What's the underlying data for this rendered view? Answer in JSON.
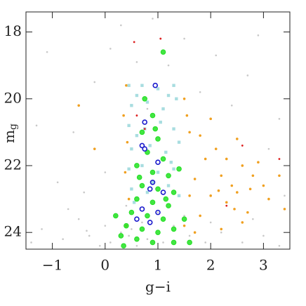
{
  "chart_data": {
    "type": "scatter",
    "xlabel": "g−i",
    "ylabel": {
      "base": "m",
      "sub": "g"
    },
    "xlim": [
      -1.5,
      3.5
    ],
    "ylim": [
      24.5,
      17.4
    ],
    "xticks": [
      {
        "value": -1,
        "label": "−1"
      },
      0,
      1,
      2,
      3
    ],
    "yticks": [
      18,
      20,
      22,
      24
    ],
    "series": [
      {
        "color": "#c8c8c8",
        "marker": "dot",
        "size": 1.3,
        "x": [
          -1.2,
          -0.8,
          -0.5,
          -0.3,
          0,
          0.1,
          0.2,
          0.3,
          0.5,
          0.6,
          0.8,
          1.1,
          1.3,
          1.6,
          1.9,
          2.2,
          2.6,
          3.0,
          3.3,
          -0.9,
          -0.6,
          -0.2,
          0.1,
          0.3,
          0.6,
          0.9,
          1.2,
          1.5,
          1.8,
          2.1,
          2.4,
          2.7,
          3.1,
          3.3,
          -1.3,
          -1.1,
          -0.4,
          0.0,
          -0.7,
          0.4,
          2.9,
          3.4,
          0.8,
          1.0,
          -1.4,
          -0.1,
          0.7,
          1.5,
          2.0,
          2.8,
          0.45,
          -0.35
        ],
        "values": [
          23.9,
          24.2,
          23.6,
          24.1,
          23.8,
          24.3,
          23.5,
          24.0,
          23.9,
          24.4,
          24.2,
          24.3,
          23.8,
          24.1,
          24.3,
          24.0,
          24.3,
          24.1,
          24.4,
          22.5,
          21.0,
          19.5,
          18.5,
          17.8,
          18.9,
          17.6,
          19.0,
          18.2,
          19.8,
          18.7,
          20.2,
          19.3,
          21.5,
          20.6,
          20.8,
          18.6,
          22.8,
          22.2,
          23.3,
          23.2,
          18.1,
          22.9,
          20.3,
          23.4,
          24.3,
          24.4,
          23.7,
          23.5,
          23.7,
          23.6,
          24.1,
          23.95
        ]
      },
      {
        "color": "#f0a020",
        "marker": "dot",
        "size": 1.8,
        "x": [
          0.4,
          0.35,
          0.42,
          0.38,
          0.45,
          0.4,
          1.5,
          1.6,
          1.7,
          1.8,
          2.0,
          2.1,
          2.2,
          2.3,
          2.2,
          2.5,
          2.6,
          2.5,
          2.7,
          2.9,
          3.0,
          3.1,
          2.8,
          2.4,
          2.0,
          1.9,
          1.6,
          1.5,
          3.3,
          3.4,
          2.6,
          2.3,
          1.8,
          1.55,
          -0.5,
          -0.2,
          2.75,
          2.45,
          2.15,
          1.7
        ],
        "values": [
          19.6,
          20.5,
          21.3,
          22.2,
          23.0,
          23.8,
          20.0,
          21.0,
          22.4,
          23.5,
          20.6,
          21.5,
          22.3,
          23.1,
          23.9,
          21.2,
          22.0,
          22.8,
          23.4,
          21.9,
          22.6,
          23.0,
          22.3,
          22.6,
          22.9,
          21.8,
          22.9,
          23.8,
          22.3,
          23.3,
          23.7,
          21.8,
          21.1,
          20.5,
          20.2,
          21.5,
          22.7,
          23.3,
          22.75,
          24.0
        ]
      },
      {
        "color": "#a8dde0",
        "marker": "square",
        "size": 2.2,
        "x": [
          0.45,
          0.7,
          1.0,
          1.3,
          0.5,
          0.8,
          1.1,
          1.35,
          0.45,
          0.75,
          1.05,
          1.3,
          0.5,
          0.85,
          1.15,
          1.4,
          0.45,
          0.7,
          1.0,
          1.3,
          0.5,
          0.8,
          1.2,
          1.4,
          0.55,
          0.6,
          1.2,
          0.6,
          1.25,
          0.9
        ],
        "values": [
          19.6,
          19.6,
          19.7,
          19.6,
          20.2,
          20.1,
          20.3,
          20.0,
          20.8,
          20.9,
          20.7,
          20.9,
          21.5,
          21.4,
          21.6,
          21.3,
          22.1,
          22.0,
          22.2,
          22.1,
          22.7,
          22.8,
          22.6,
          22.9,
          23.1,
          19.9,
          19.9,
          21.1,
          21.9,
          22.5
        ]
      },
      {
        "color": "#22e022",
        "marker": "circle",
        "size": 3.3,
        "x": [
          1.1,
          0.75,
          0.9,
          0.7,
          1.0,
          0.8,
          1.1,
          0.6,
          0.9,
          1.2,
          0.7,
          1.0,
          1.3,
          0.6,
          0.9,
          1.2,
          0.5,
          0.8,
          1.1,
          0.4,
          0.7,
          1.0,
          1.3,
          0.3,
          0.6,
          0.9,
          1.3,
          0.2,
          1.5,
          1.6,
          0.35,
          1.4,
          0.95,
          1.15,
          0.65
        ],
        "values": [
          18.6,
          20.0,
          20.5,
          21.0,
          21.2,
          21.6,
          21.8,
          22.0,
          22.2,
          22.3,
          22.6,
          22.7,
          22.8,
          23.0,
          23.1,
          23.2,
          23.4,
          23.5,
          23.6,
          23.8,
          23.9,
          24.0,
          23.9,
          24.1,
          24.2,
          24.3,
          24.3,
          23.5,
          23.6,
          24.3,
          24.4,
          22.1,
          20.9,
          23.0,
          22.35
        ]
      },
      {
        "color": "#1a1acc",
        "marker": "ring",
        "size": 3,
        "x": [
          0.95,
          0.75,
          0.7,
          0.75,
          1.0,
          0.9,
          0.85,
          1.1,
          0.7,
          1.0,
          0.6,
          0.85
        ],
        "values": [
          19.6,
          20.7,
          21.4,
          21.5,
          21.9,
          22.5,
          22.7,
          22.8,
          23.3,
          23.4,
          23.6,
          23.7
        ]
      },
      {
        "color": "#dd2020",
        "marker": "dot",
        "size": 1.4,
        "x": [
          0.55,
          1.05,
          0.6,
          0.75,
          2.6,
          3.3,
          2.3
        ],
        "values": [
          18.3,
          18.2,
          20.5,
          20.9,
          21.4,
          21.8,
          23.2
        ]
      }
    ]
  }
}
